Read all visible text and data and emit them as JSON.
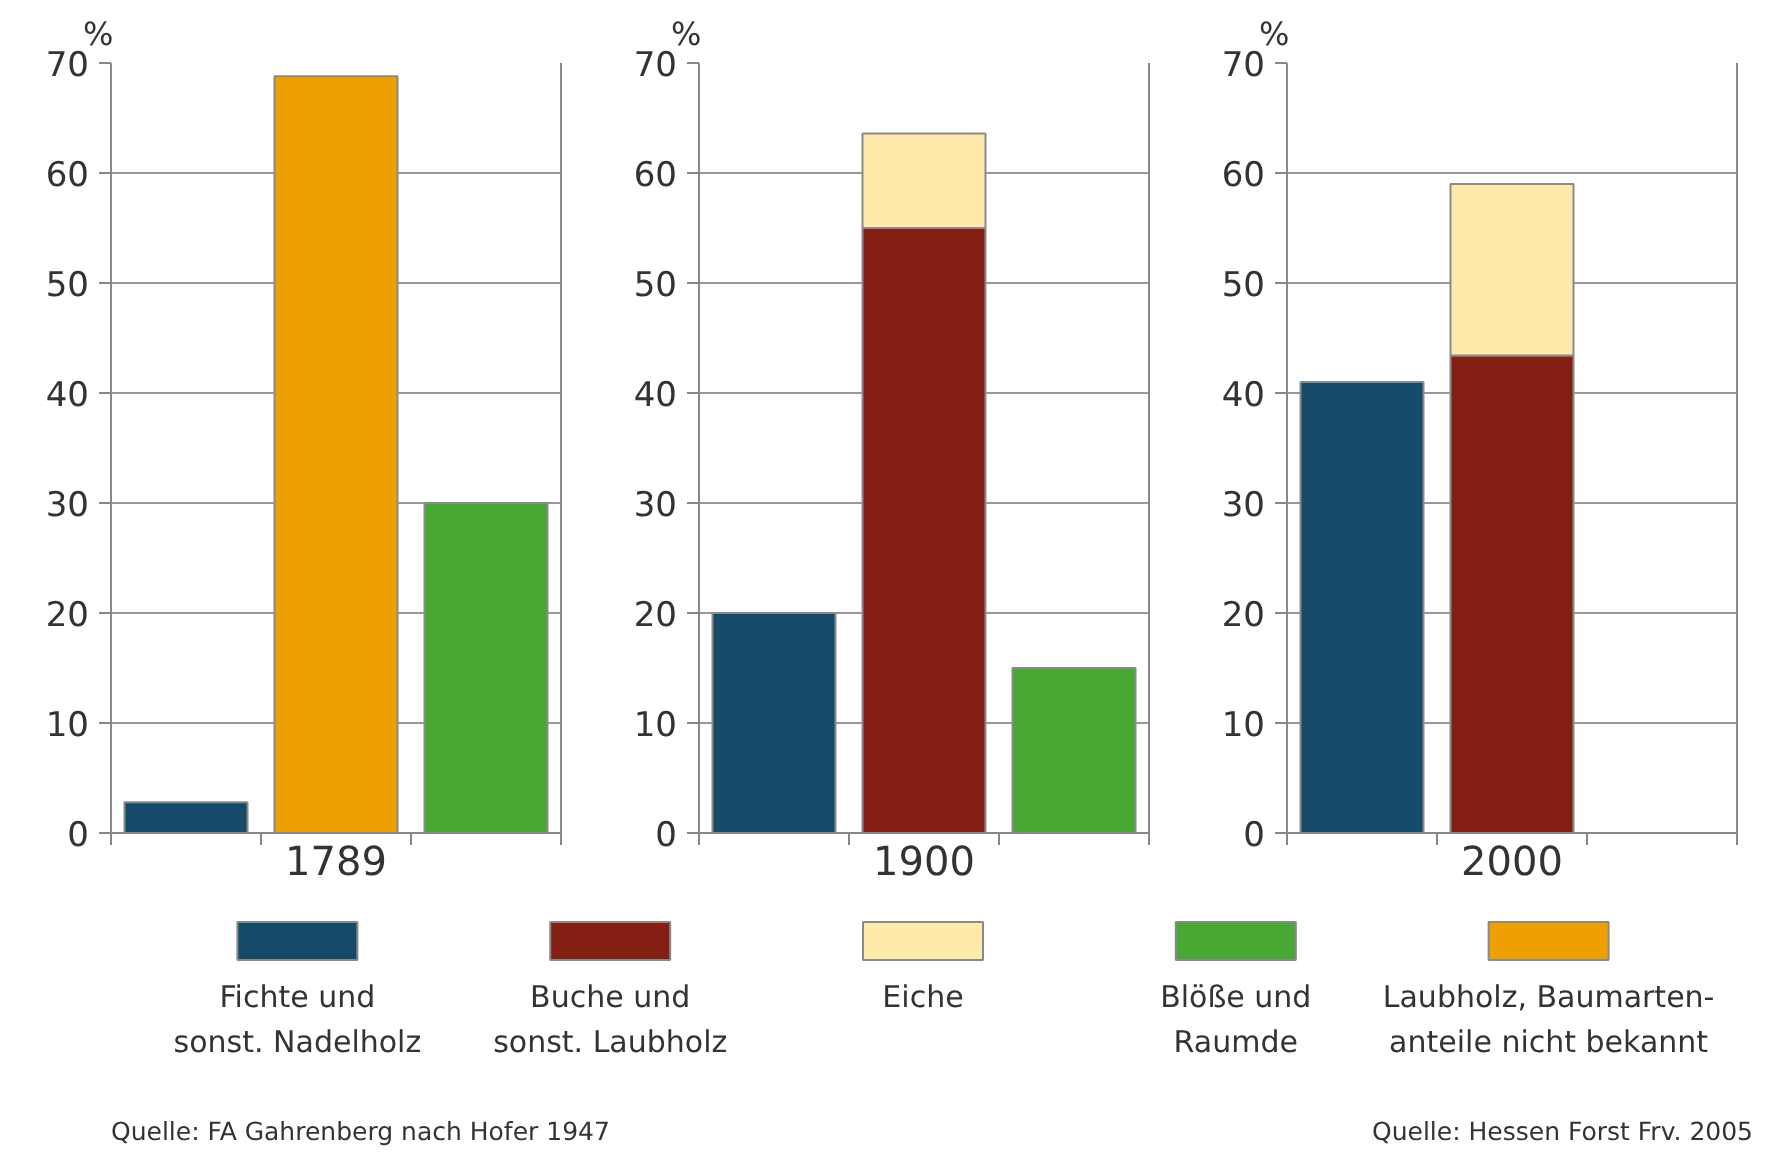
{
  "chart_data": [
    {
      "type": "bar",
      "stacked": true,
      "xlabel": "1789",
      "ylabel": "%",
      "categories": [
        null,
        null,
        null
      ],
      "ylim": [
        0,
        70
      ],
      "yticks": [
        0,
        10,
        20,
        30,
        40,
        50,
        60,
        70
      ],
      "grid": "y",
      "legend": "bottom",
      "series": [
        {
          "name": "Fichte und\nsonst. Nadelholz",
          "color": "#164a69",
          "values": [
            2.8,
            null,
            null
          ]
        },
        {
          "name": "Blöße und\nRaumde",
          "color": "#47a834",
          "values": [
            null,
            null,
            30
          ]
        },
        {
          "name": "Laubholz, Baumarten-\nanteile nicht bekannt",
          "color": "#eea000",
          "values": [
            null,
            68.8,
            null
          ]
        }
      ],
      "annotations": [
        "Quelle: FA Gahrenberg nach Hofer 1947"
      ]
    },
    {
      "type": "bar",
      "stacked": true,
      "xlabel": "1900",
      "ylabel": "%",
      "categories": [
        null,
        null,
        null
      ],
      "ylim": [
        0,
        70
      ],
      "yticks": [
        0,
        10,
        20,
        30,
        40,
        50,
        60,
        70
      ],
      "grid": "y",
      "legend": "bottom",
      "series": [
        {
          "name": "Fichte und\nsonst. Nadelholz",
          "color": "#164a69",
          "values": [
            20,
            null,
            null
          ]
        },
        {
          "name": "Buche und\nsonst. Laubholz",
          "color": "#832013",
          "values": [
            null,
            55,
            null
          ]
        },
        {
          "name": "Eiche",
          "color": "#feeaab",
          "values": [
            null,
            8.6,
            null
          ]
        },
        {
          "name": "Blöße und\nRaumde",
          "color": "#47a834",
          "values": [
            null,
            null,
            15
          ]
        }
      ]
    },
    {
      "type": "bar",
      "stacked": true,
      "xlabel": "2000",
      "ylabel": "%",
      "categories": [
        null,
        null,
        null
      ],
      "ylim": [
        0,
        70
      ],
      "yticks": [
        0,
        10,
        20,
        30,
        40,
        50,
        60,
        70
      ],
      "grid": "y",
      "legend": "bottom",
      "series": [
        {
          "name": "Fichte und\nsonst. Nadelholz",
          "color": "#164a69",
          "values": [
            41,
            null,
            null
          ]
        },
        {
          "name": "Buche und\nsonst. Laubholz",
          "color": "#832013",
          "values": [
            null,
            43.4,
            null
          ]
        },
        {
          "name": "Eiche",
          "color": "#feeaab",
          "values": [
            null,
            15.6,
            null
          ]
        }
      ],
      "annotations": [
        "Quelle: Hessen Forst Frv. 2005"
      ]
    }
  ]
}
